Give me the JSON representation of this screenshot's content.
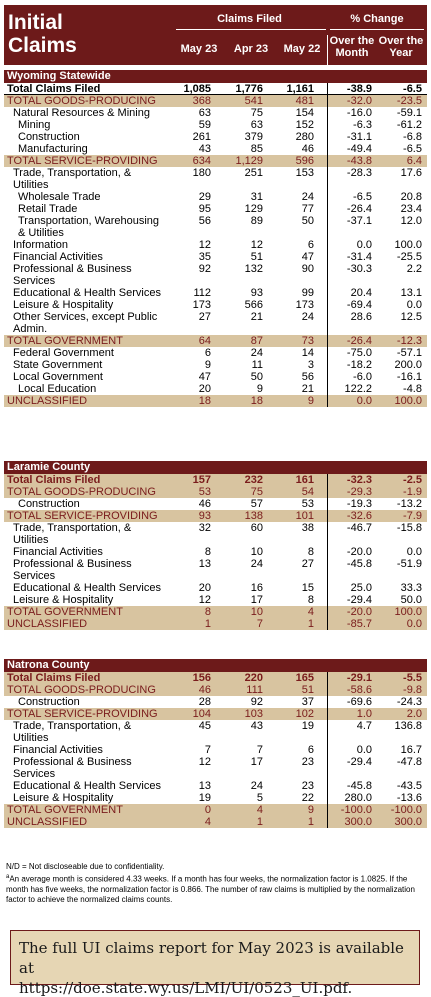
{
  "header": {
    "title_line1": "Initial",
    "title_line2": "Claims",
    "claims_filed": "Claims Filed",
    "pct_change": "% Change",
    "col_may23": "May 23",
    "col_apr23": "Apr 23",
    "col_may22": "May 22",
    "col_over_month_1": "Over the",
    "col_over_month_2": "Month",
    "col_over_year_1": "Over the",
    "col_over_year_2": "Year"
  },
  "sections": [
    {
      "title": "Wyoming Statewide",
      "rows": [
        {
          "label": "Total Claims Filed",
          "v": [
            "1,085",
            "1,776",
            "1,161",
            "-38.9",
            "-6.5"
          ],
          "style": "total"
        },
        {
          "label": "TOTAL GOODS-PRODUCING",
          "v": [
            "368",
            "541",
            "481",
            "-32.0",
            "-23.5"
          ],
          "style": "tan"
        },
        {
          "label": "Natural Resources & Mining",
          "v": [
            "63",
            "75",
            "154",
            "-16.0",
            "-59.1"
          ],
          "style": "i1"
        },
        {
          "label": "Mining",
          "v": [
            "59",
            "63",
            "152",
            "-6.3",
            "-61.2"
          ],
          "style": "i2"
        },
        {
          "label": "Construction",
          "v": [
            "261",
            "379",
            "280",
            "-31.1",
            "-6.8"
          ],
          "style": "i2"
        },
        {
          "label": "Manufacturing",
          "v": [
            "43",
            "85",
            "46",
            "-49.4",
            "-6.5"
          ],
          "style": "i2"
        },
        {
          "label": "TOTAL SERVICE-PROVIDING",
          "v": [
            "634",
            "1,129",
            "596",
            "-43.8",
            "6.4"
          ],
          "style": "tan"
        },
        {
          "label": "Trade, Transportation, &",
          "label2": "Utilities",
          "v": [
            "180",
            "251",
            "153",
            "-28.3",
            "17.6"
          ],
          "style": "i1"
        },
        {
          "label": "Wholesale Trade",
          "v": [
            "29",
            "31",
            "24",
            "-6.5",
            "20.8"
          ],
          "style": "i2"
        },
        {
          "label": "Retail Trade",
          "v": [
            "95",
            "129",
            "77",
            "-26.4",
            "23.4"
          ],
          "style": "i2"
        },
        {
          "label": "Transportation, Warehousing",
          "label2": "& Utilities",
          "v": [
            "56",
            "89",
            "50",
            "-37.1",
            "12.0"
          ],
          "style": "i2"
        },
        {
          "label": "Information",
          "v": [
            "12",
            "12",
            "6",
            "0.0",
            "100.0"
          ],
          "style": "i1"
        },
        {
          "label": "Financial Activities",
          "v": [
            "35",
            "51",
            "47",
            "-31.4",
            "-25.5"
          ],
          "style": "i1"
        },
        {
          "label": "Professional & Business",
          "label2": "Services",
          "v": [
            "92",
            "132",
            "90",
            "-30.3",
            "2.2"
          ],
          "style": "i1"
        },
        {
          "label": "Educational & Health Services",
          "v": [
            "112",
            "93",
            "99",
            "20.4",
            "13.1"
          ],
          "style": "i1"
        },
        {
          "label": "Leisure & Hospitality",
          "v": [
            "173",
            "566",
            "173",
            "-69.4",
            "0.0"
          ],
          "style": "i1"
        },
        {
          "label": "Other Services, except Public",
          "label2": "Admin.",
          "v": [
            "27",
            "21",
            "24",
            "28.6",
            "12.5"
          ],
          "style": "i1"
        },
        {
          "label": "TOTAL GOVERNMENT",
          "v": [
            "64",
            "87",
            "73",
            "-26.4",
            "-12.3"
          ],
          "style": "tan"
        },
        {
          "label": "Federal Government",
          "v": [
            "6",
            "24",
            "14",
            "-75.0",
            "-57.1"
          ],
          "style": "i1"
        },
        {
          "label": "State Government",
          "v": [
            "9",
            "11",
            "3",
            "-18.2",
            "200.0"
          ],
          "style": "i1"
        },
        {
          "label": "Local Government",
          "v": [
            "47",
            "50",
            "56",
            "-6.0",
            "-16.1"
          ],
          "style": "i1"
        },
        {
          "label": "Local Education",
          "v": [
            "20",
            "9",
            "21",
            "122.2",
            "-4.8"
          ],
          "style": "i2"
        },
        {
          "label": "UNCLASSIFIED",
          "v": [
            "18",
            "18",
            "9",
            "0.0",
            "100.0"
          ],
          "style": "tan"
        }
      ]
    },
    {
      "title": "Laramie County",
      "rows": [
        {
          "label": "Total Claims Filed",
          "v": [
            "157",
            "232",
            "161",
            "-32.3",
            "-2.5"
          ],
          "style": "totaltan"
        },
        {
          "label": "TOTAL GOODS-PRODUCING",
          "v": [
            "53",
            "75",
            "54",
            "-29.3",
            "-1.9"
          ],
          "style": "tan"
        },
        {
          "label": "Construction",
          "v": [
            "46",
            "57",
            "53",
            "-19.3",
            "-13.2"
          ],
          "style": "i2"
        },
        {
          "label": "TOTAL SERVICE-PROVIDING",
          "v": [
            "93",
            "138",
            "101",
            "-32.6",
            "-7.9"
          ],
          "style": "tan"
        },
        {
          "label": "Trade, Transportation, &",
          "label2": "Utilities",
          "v": [
            "32",
            "60",
            "38",
            "-46.7",
            "-15.8"
          ],
          "style": "i1"
        },
        {
          "label": "Financial Activities",
          "v": [
            "8",
            "10",
            "8",
            "-20.0",
            "0.0"
          ],
          "style": "i1"
        },
        {
          "label": "Professional & Business",
          "label2": "Services",
          "v": [
            "13",
            "24",
            "27",
            "-45.8",
            "-51.9"
          ],
          "style": "i1"
        },
        {
          "label": "Educational & Health Services",
          "v": [
            "20",
            "16",
            "15",
            "25.0",
            "33.3"
          ],
          "style": "i1"
        },
        {
          "label": "Leisure & Hospitality",
          "v": [
            "12",
            "17",
            "8",
            "-29.4",
            "50.0"
          ],
          "style": "i1"
        },
        {
          "label": "TOTAL GOVERNMENT",
          "v": [
            "8",
            "10",
            "4",
            "-20.0",
            "100.0"
          ],
          "style": "tan"
        },
        {
          "label": "UNCLASSIFIED",
          "v": [
            "1",
            "7",
            "1",
            "-85.7",
            "0.0"
          ],
          "style": "tan"
        }
      ]
    },
    {
      "title": "Natrona County",
      "rows": [
        {
          "label": "Total Claims Filed",
          "v": [
            "156",
            "220",
            "165",
            "-29.1",
            "-5.5"
          ],
          "style": "totaltan"
        },
        {
          "label": "TOTAL GOODS-PRODUCING",
          "v": [
            "46",
            "111",
            "51",
            "-58.6",
            "-9.8"
          ],
          "style": "tan"
        },
        {
          "label": "Construction",
          "v": [
            "28",
            "92",
            "37",
            "-69.6",
            "-24.3"
          ],
          "style": "i2"
        },
        {
          "label": "TOTAL SERVICE-PROVIDING",
          "v": [
            "104",
            "103",
            "102",
            "1.0",
            "2.0"
          ],
          "style": "tan"
        },
        {
          "label": "Trade, Transportation, &",
          "label2": "Utilities",
          "v": [
            "45",
            "43",
            "19",
            "4.7",
            "136.8"
          ],
          "style": "i1"
        },
        {
          "label": "Financial Activities",
          "v": [
            "7",
            "7",
            "6",
            "0.0",
            "16.7"
          ],
          "style": "i1"
        },
        {
          "label": "Professional & Business",
          "label2": "Services",
          "v": [
            "12",
            "17",
            "23",
            "-29.4",
            "-47.8"
          ],
          "style": "i1"
        },
        {
          "label": "Educational & Health Services",
          "v": [
            "13",
            "24",
            "23",
            "-45.8",
            "-43.5"
          ],
          "style": "i1"
        },
        {
          "label": "Leisure & Hospitality",
          "v": [
            "19",
            "5",
            "22",
            "280.0",
            "-13.6"
          ],
          "style": "i1"
        },
        {
          "label": "TOTAL GOVERNMENT",
          "v": [
            "0",
            "4",
            "9",
            "-100.0",
            "-100.0"
          ],
          "style": "tan"
        },
        {
          "label": "UNCLASSIFIED",
          "v": [
            "4",
            "1",
            "1",
            "300.0",
            "300.0"
          ],
          "style": "tan"
        }
      ]
    }
  ],
  "notes": {
    "nd": "N/D = Not discloseable due to confidentiality.",
    "footnote_mark": "a",
    "normalization": "An average month is considered 4.33 weeks. If a month has four weeks, the normalization factor is 1.0825. If the month has five weeks, the normalization factor is 0.866. The number of raw claims is multiplied by the normalization factor to achieve the normalized claims counts."
  },
  "footer": {
    "line1": "The full UI claims report for May 2023 is available at",
    "line2": "https://doe.state.wy.us/LMI/UI/0523_UI.pdf."
  },
  "colors": {
    "maroon": "#6d1a1a",
    "tan": "#d8c4a0",
    "tan_text": "#7a1c1c",
    "footer_bg": "#e6d6b4"
  }
}
